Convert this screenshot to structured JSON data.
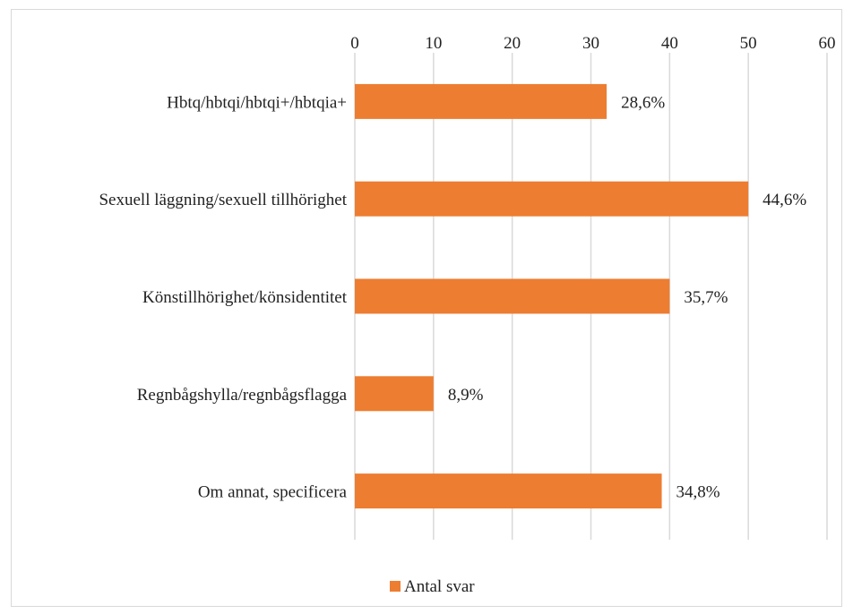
{
  "chart_data": {
    "type": "bar",
    "orientation": "horizontal",
    "categories": [
      "Hbtq/hbtqi/hbtqi+/hbtqia+",
      "Sexuell läggning/sexuell tillhörighet",
      "Könstillhörighet/könsidentitet",
      "Regnbågshylla/regnbågsflagga",
      "Om annat, specificera"
    ],
    "series": [
      {
        "name": "Antal svar",
        "values": [
          32,
          50,
          40,
          10,
          39
        ],
        "data_labels": [
          "28,6%",
          "44,6%",
          "35,7%",
          "8,9%",
          "34,8%"
        ]
      }
    ],
    "xlim": [
      0,
      60
    ],
    "xticks": [
      0,
      10,
      20,
      30,
      40,
      50,
      60
    ],
    "xtick_labels": [
      "0",
      "10",
      "20",
      "30",
      "40",
      "50",
      "60"
    ],
    "x_axis_position": "top",
    "grid": true,
    "legend": "bottom",
    "colors": {
      "bar": "#ed7d31",
      "grid": "#d9d9d9",
      "text": "#222222"
    }
  }
}
